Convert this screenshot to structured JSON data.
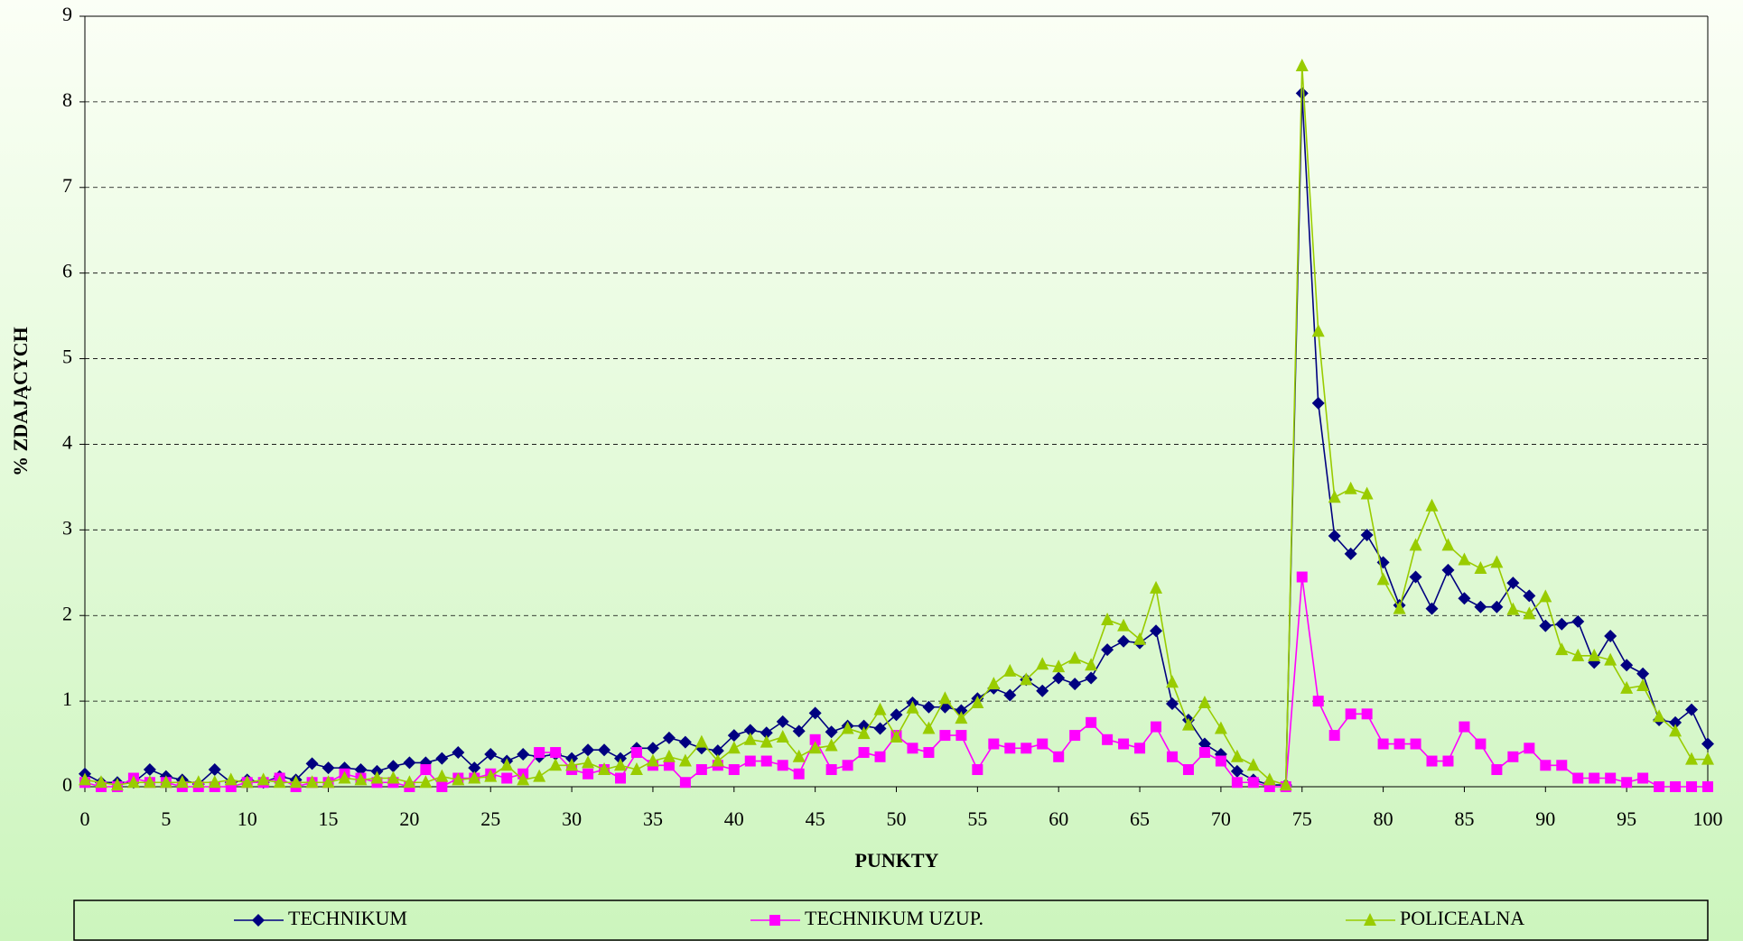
{
  "chart_data": {
    "type": "line",
    "x_label": "PUNKTY",
    "y_label": "% ZDAJĄCYCH",
    "x": [
      0,
      1,
      2,
      3,
      4,
      5,
      6,
      7,
      8,
      9,
      10,
      11,
      12,
      13,
      14,
      15,
      16,
      17,
      18,
      19,
      20,
      21,
      22,
      23,
      24,
      25,
      26,
      27,
      28,
      29,
      30,
      31,
      32,
      33,
      34,
      35,
      36,
      37,
      38,
      39,
      40,
      41,
      42,
      43,
      44,
      45,
      46,
      47,
      48,
      49,
      50,
      51,
      52,
      53,
      54,
      55,
      56,
      57,
      58,
      59,
      60,
      61,
      62,
      63,
      64,
      65,
      66,
      67,
      68,
      69,
      70,
      71,
      72,
      73,
      74,
      75,
      76,
      77,
      78,
      79,
      80,
      81,
      82,
      83,
      84,
      85,
      86,
      87,
      88,
      89,
      90,
      91,
      92,
      93,
      94,
      95,
      96,
      97,
      98,
      99,
      100
    ],
    "xlim": [
      0,
      100
    ],
    "xticks": [
      0,
      5,
      10,
      15,
      20,
      25,
      30,
      35,
      40,
      45,
      50,
      55,
      60,
      65,
      70,
      75,
      80,
      85,
      90,
      95,
      100
    ],
    "ylim": [
      0,
      9
    ],
    "yticks": [
      0,
      1,
      2,
      3,
      4,
      5,
      6,
      7,
      8,
      9
    ],
    "grid": true,
    "legend": "bottom",
    "series": [
      {
        "name": "TECHNIKUM",
        "color": "#000080",
        "marker": "diamond",
        "values": [
          0.15,
          0.05,
          0.05,
          0.05,
          0.2,
          0.12,
          0.08,
          0.03,
          0.2,
          0.05,
          0.08,
          0.05,
          0.12,
          0.08,
          0.27,
          0.22,
          0.22,
          0.2,
          0.18,
          0.24,
          0.28,
          0.28,
          0.33,
          0.4,
          0.22,
          0.38,
          0.3,
          0.38,
          0.35,
          0.38,
          0.33,
          0.43,
          0.43,
          0.33,
          0.45,
          0.45,
          0.57,
          0.52,
          0.45,
          0.42,
          0.6,
          0.66,
          0.63,
          0.76,
          0.65,
          0.86,
          0.64,
          0.71,
          0.71,
          0.68,
          0.84,
          0.98,
          0.93,
          0.93,
          0.89,
          1.03,
          1.15,
          1.07,
          1.25,
          1.12,
          1.27,
          1.2,
          1.27,
          1.6,
          1.7,
          1.68,
          1.82,
          0.97,
          0.78,
          0.5,
          0.38,
          0.18,
          0.08,
          0.02,
          0.02,
          8.1,
          4.48,
          2.93,
          2.72,
          2.94,
          2.62,
          2.12,
          2.45,
          2.08,
          2.53,
          2.2,
          2.1,
          2.1,
          2.38,
          2.23,
          1.88,
          1.9,
          1.93,
          1.45,
          1.76,
          1.42,
          1.32,
          0.78,
          0.75,
          0.9,
          0.5
        ]
      },
      {
        "name": "TECHNIKUM UZUP.",
        "color": "#ff00ff",
        "marker": "square",
        "values": [
          0.05,
          0,
          0,
          0.1,
          0.05,
          0.05,
          0,
          0,
          0,
          0,
          0.05,
          0.05,
          0.1,
          0,
          0.05,
          0.05,
          0.15,
          0.1,
          0.05,
          0.05,
          0,
          0.2,
          0,
          0.1,
          0.1,
          0.15,
          0.1,
          0.15,
          0.4,
          0.4,
          0.2,
          0.15,
          0.2,
          0.1,
          0.4,
          0.25,
          0.25,
          0.05,
          0.2,
          0.25,
          0.2,
          0.3,
          0.3,
          0.25,
          0.15,
          0.55,
          0.2,
          0.25,
          0.4,
          0.35,
          0.6,
          0.45,
          0.4,
          0.6,
          0.6,
          0.2,
          0.5,
          0.45,
          0.45,
          0.5,
          0.35,
          0.6,
          0.75,
          0.55,
          0.5,
          0.45,
          0.7,
          0.35,
          0.2,
          0.4,
          0.3,
          0.05,
          0.05,
          0,
          0,
          2.45,
          1.0,
          0.6,
          0.85,
          0.85,
          0.5,
          0.5,
          0.5,
          0.3,
          0.3,
          0.7,
          0.5,
          0.2,
          0.35,
          0.45,
          0.25,
          0.25,
          0.1,
          0.1,
          0.1,
          0.05,
          0.1,
          0,
          0,
          0,
          0
        ]
      },
      {
        "name": "POLICEALNA",
        "color": "#99cc00",
        "marker": "triangle",
        "values": [
          0.08,
          0.05,
          0.02,
          0.05,
          0.05,
          0.05,
          0.05,
          0.05,
          0.05,
          0.08,
          0.05,
          0.08,
          0.05,
          0.05,
          0.05,
          0.05,
          0.1,
          0.08,
          0.1,
          0.1,
          0.05,
          0.05,
          0.12,
          0.08,
          0.1,
          0.12,
          0.25,
          0.08,
          0.12,
          0.25,
          0.25,
          0.28,
          0.2,
          0.25,
          0.2,
          0.3,
          0.35,
          0.3,
          0.52,
          0.3,
          0.45,
          0.55,
          0.52,
          0.58,
          0.35,
          0.45,
          0.48,
          0.68,
          0.62,
          0.9,
          0.58,
          0.92,
          0.68,
          1.03,
          0.8,
          0.98,
          1.2,
          1.35,
          1.25,
          1.43,
          1.4,
          1.5,
          1.42,
          1.95,
          1.88,
          1.72,
          2.32,
          1.22,
          0.72,
          0.98,
          0.68,
          0.35,
          0.25,
          0.08,
          0.02,
          8.42,
          5.32,
          3.38,
          3.48,
          3.42,
          2.42,
          2.08,
          2.82,
          3.28,
          2.82,
          2.65,
          2.55,
          2.62,
          2.07,
          2.02,
          2.22,
          1.6,
          1.53,
          1.53,
          1.48,
          1.15,
          1.18,
          0.82,
          0.65,
          0.32,
          0.32
        ]
      }
    ]
  }
}
